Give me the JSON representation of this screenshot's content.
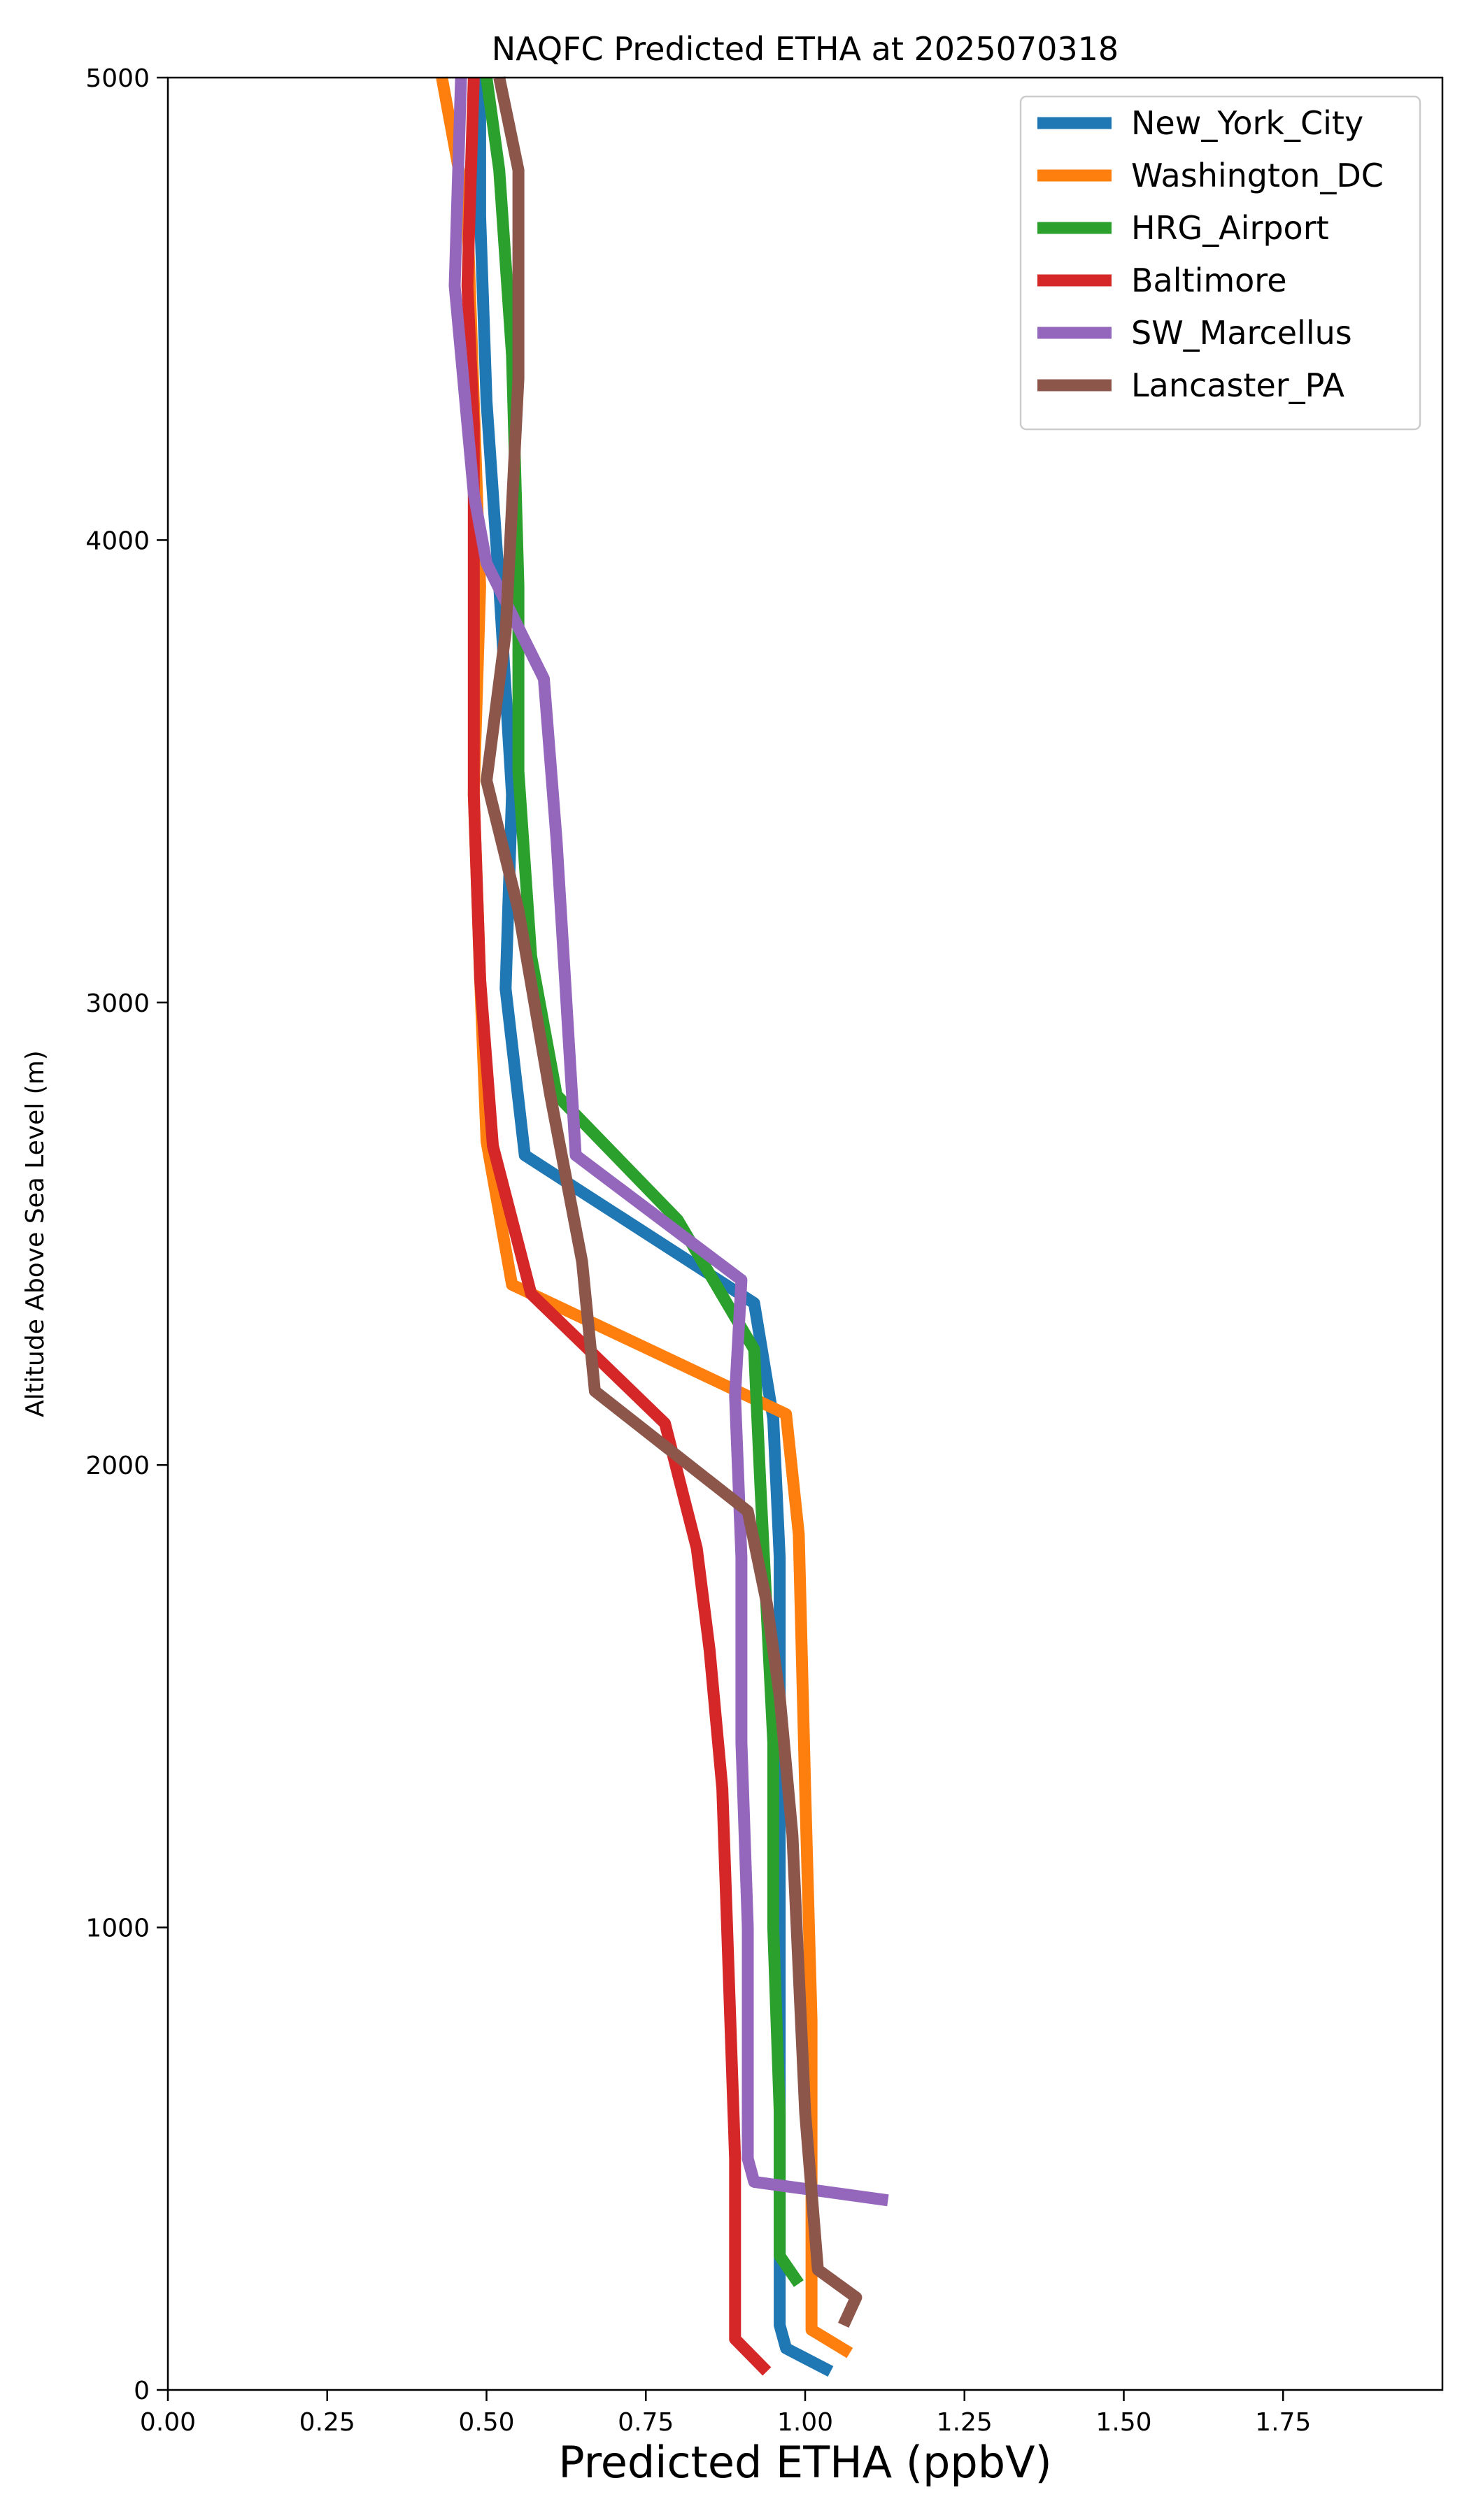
{
  "chart_data": {
    "type": "line",
    "title": "NAQFC Predicted ETHA at 2025070318",
    "xlabel": "Predicted ETHA (ppbV)",
    "ylabel": "Altitude Above Sea Level (m)",
    "xlim": [
      0,
      2.0
    ],
    "ylim": [
      0,
      5000
    ],
    "xticks": [
      0.0,
      0.25,
      0.5,
      0.75,
      1.0,
      1.25,
      1.5,
      1.75
    ],
    "xtick_labels": [
      "0.00",
      "0.25",
      "0.50",
      "0.75",
      "1.00",
      "1.25",
      "1.50",
      "1.75"
    ],
    "yticks": [
      0,
      1000,
      2000,
      3000,
      4000,
      5000
    ],
    "ytick_labels": [
      "0",
      "1000",
      "2000",
      "3000",
      "4000",
      "5000"
    ],
    "grid": false,
    "legend_position": "top-right",
    "series": [
      {
        "name": "New_York_City",
        "color": "#1f77b4",
        "points": [
          [
            1.04,
            40
          ],
          [
            0.97,
            90
          ],
          [
            0.96,
            140
          ],
          [
            0.96,
            300
          ],
          [
            0.96,
            800
          ],
          [
            0.96,
            1300
          ],
          [
            0.96,
            1800
          ],
          [
            0.95,
            2100
          ],
          [
            0.92,
            2350
          ],
          [
            0.56,
            2670
          ],
          [
            0.53,
            3030
          ],
          [
            0.54,
            3450
          ],
          [
            0.52,
            3900
          ],
          [
            0.5,
            4300
          ],
          [
            0.49,
            4700
          ],
          [
            0.49,
            5000
          ]
        ]
      },
      {
        "name": "Washington_DC",
        "color": "#ff7f0e",
        "points": [
          [
            1.07,
            80
          ],
          [
            1.01,
            130
          ],
          [
            1.01,
            400
          ],
          [
            1.01,
            800
          ],
          [
            1.0,
            1300
          ],
          [
            0.99,
            1850
          ],
          [
            0.97,
            2110
          ],
          [
            0.54,
            2390
          ],
          [
            0.5,
            2700
          ],
          [
            0.49,
            3050
          ],
          [
            0.48,
            3450
          ],
          [
            0.49,
            3900
          ],
          [
            0.48,
            4300
          ],
          [
            0.47,
            4700
          ],
          [
            0.43,
            5000
          ]
        ]
      },
      {
        "name": "HRG_Airport",
        "color": "#2ca02c",
        "points": [
          [
            0.99,
            230
          ],
          [
            0.96,
            290
          ],
          [
            0.96,
            600
          ],
          [
            0.95,
            1000
          ],
          [
            0.95,
            1400
          ],
          [
            0.93,
            1950
          ],
          [
            0.92,
            2250
          ],
          [
            0.8,
            2530
          ],
          [
            0.61,
            2800
          ],
          [
            0.57,
            3100
          ],
          [
            0.55,
            3500
          ],
          [
            0.55,
            3900
          ],
          [
            0.54,
            4400
          ],
          [
            0.52,
            4800
          ],
          [
            0.5,
            5000
          ]
        ]
      },
      {
        "name": "Baltimore",
        "color": "#d62728",
        "points": [
          [
            0.94,
            40
          ],
          [
            0.89,
            110
          ],
          [
            0.89,
            200
          ],
          [
            0.89,
            500
          ],
          [
            0.88,
            900
          ],
          [
            0.87,
            1300
          ],
          [
            0.85,
            1600
          ],
          [
            0.83,
            1820
          ],
          [
            0.78,
            2090
          ],
          [
            0.57,
            2370
          ],
          [
            0.51,
            2690
          ],
          [
            0.49,
            3050
          ],
          [
            0.48,
            3450
          ],
          [
            0.48,
            3900
          ],
          [
            0.48,
            4250
          ],
          [
            0.47,
            4550
          ],
          [
            0.48,
            5000
          ]
        ]
      },
      {
        "name": "SW_Marcellus",
        "color": "#9467bd",
        "points": [
          [
            1.13,
            410
          ],
          [
            0.92,
            450
          ],
          [
            0.91,
            500
          ],
          [
            0.91,
            700
          ],
          [
            0.91,
            1000
          ],
          [
            0.9,
            1400
          ],
          [
            0.9,
            1800
          ],
          [
            0.89,
            2150
          ],
          [
            0.9,
            2400
          ],
          [
            0.64,
            2670
          ],
          [
            0.61,
            3350
          ],
          [
            0.59,
            3700
          ],
          [
            0.5,
            3950
          ],
          [
            0.48,
            4100
          ],
          [
            0.45,
            4550
          ],
          [
            0.46,
            5000
          ]
        ]
      },
      {
        "name": "Lancaster_PA",
        "color": "#8c564b",
        "points": [
          [
            1.06,
            140
          ],
          [
            1.08,
            200
          ],
          [
            1.02,
            260
          ],
          [
            1.0,
            600
          ],
          [
            0.99,
            900
          ],
          [
            0.98,
            1200
          ],
          [
            0.96,
            1500
          ],
          [
            0.94,
            1700
          ],
          [
            0.91,
            1900
          ],
          [
            0.67,
            2160
          ],
          [
            0.65,
            2440
          ],
          [
            0.6,
            2800
          ],
          [
            0.55,
            3200
          ],
          [
            0.5,
            3480
          ],
          [
            0.53,
            3800
          ],
          [
            0.55,
            4350
          ],
          [
            0.55,
            4800
          ],
          [
            0.52,
            5000
          ]
        ]
      }
    ]
  }
}
